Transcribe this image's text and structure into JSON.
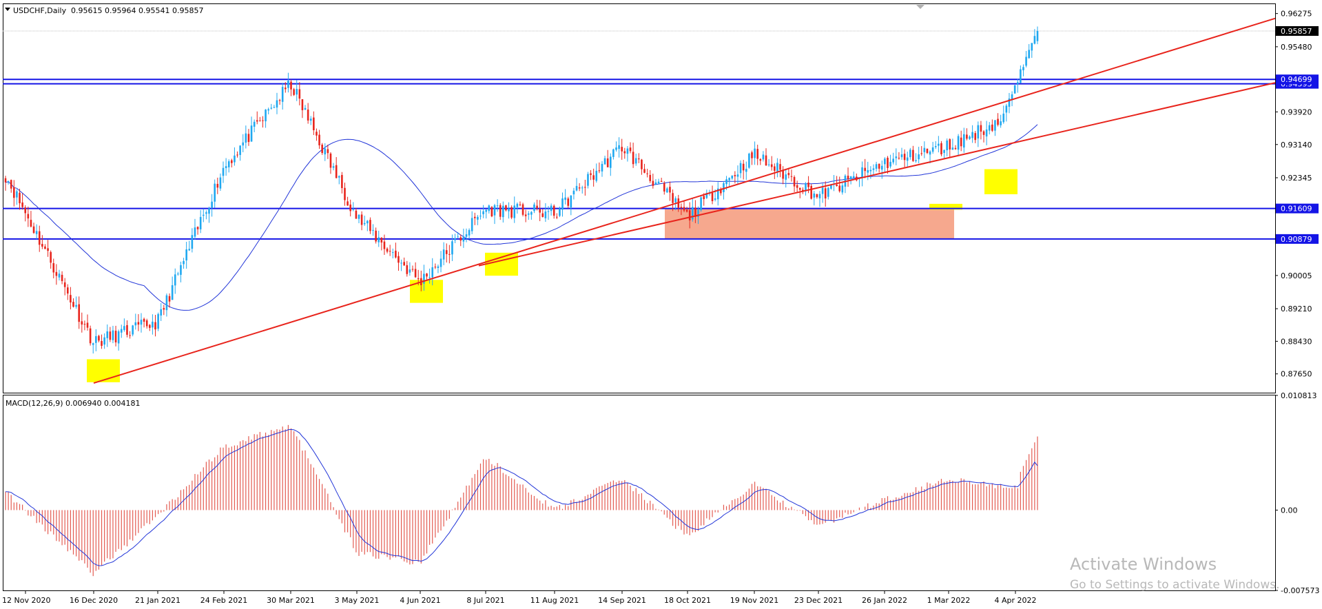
{
  "header": {
    "symbol": "USDCHF,Daily",
    "ohlc": "0.95615 0.95964 0.95541 0.95857",
    "macd_label": "MACD(12,26,9) 0.006940 0.004181"
  },
  "watermark": {
    "line1": "Activate Windows",
    "line2": "Go to Settings to activate Windows."
  },
  "colors": {
    "bull": "#1fa8f0",
    "bear": "#e8241c",
    "sma": "#2034d8",
    "level": "#1414e6",
    "trend": "#e8241c",
    "zone": "#f4997a",
    "highlight": "#ffff00",
    "macd_hist": "#e35a50",
    "macd_signal": "#2034d8"
  },
  "chart_data": {
    "type": "candlestick",
    "symbol": "USDCHF",
    "timeframe": "Daily",
    "last": {
      "open": 0.95615,
      "high": 0.95964,
      "low": 0.95541,
      "close": 0.95857
    },
    "price_axis": {
      "ylim": [
        0.872,
        0.965
      ],
      "ticks": [
        "0.96275",
        "0.95480",
        "0.93920",
        "0.93140",
        "0.92345",
        "0.90005",
        "0.89210",
        "0.88430",
        "0.87650"
      ]
    },
    "time_axis": {
      "ticks": [
        "12 Nov 2020",
        "16 Dec 2020",
        "21 Jan 2021",
        "24 Feb 2021",
        "30 Mar 2021",
        "3 May 2021",
        "4 Jun 2021",
        "8 Jul 2021",
        "11 Aug 2021",
        "14 Sep 2021",
        "18 Oct 2021",
        "19 Nov 2021",
        "23 Dec 2021",
        "26 Jan 2022",
        "1 Mar 2022",
        "4 Apr 2022"
      ]
    },
    "key_points": {
      "dates": [
        "12 Nov 2020",
        "16 Dec 2020",
        "21 Jan 2021",
        "24 Feb 2021",
        "30 Mar 2021",
        "3 May 2021",
        "4 Jun 2021",
        "8 Jul 2021",
        "11 Aug 2021",
        "14 Sep 2021",
        "18 Oct 2021",
        "19 Nov 2021",
        "23 Dec 2021",
        "26 Jan 2022",
        "1 Mar 2022",
        "4 Apr 2022"
      ],
      "close": [
        0.915,
        0.884,
        0.889,
        0.926,
        0.946,
        0.914,
        0.8985,
        0.916,
        0.915,
        0.931,
        0.914,
        0.929,
        0.919,
        0.927,
        0.931,
        0.939
      ],
      "macd": [
        0.0,
        -0.006,
        -0.0005,
        0.006,
        0.008,
        -0.004,
        -0.005,
        0.005,
        0.0,
        0.003,
        -0.0025,
        0.0025,
        -0.0015,
        0.001,
        0.003,
        0.002
      ]
    },
    "current_price": 0.95857,
    "horizontal_levels": [
      {
        "price": 0.94699,
        "label": "0.94699"
      },
      {
        "price": 0.94593,
        "label": "0.94593"
      },
      {
        "price": 0.91609,
        "label": "0.91609"
      },
      {
        "price": 0.90879,
        "label": "0.90879"
      }
    ],
    "trendlines": [
      {
        "from": {
          "date": "16 Dec 2020",
          "price": 0.8743
        },
        "to": {
          "date": "4 Apr 2022",
          "price": 0.9424
        }
      },
      {
        "from": {
          "date": "8 Jul 2021",
          "price": 0.9024
        },
        "to": {
          "date": "4 Apr 2022",
          "price": 0.9319
        }
      }
    ],
    "support_zone": {
      "from": "18 Oct 2021",
      "to": "4 Apr 2022",
      "price_from": 0.90879,
      "price_to": 0.91609
    },
    "highlights": [
      {
        "date": "16 Dec 2020",
        "price_from": 0.8745,
        "price_to": 0.88
      },
      {
        "date": "4 Jun 2021",
        "price_from": 0.8935,
        "price_to": 0.899
      },
      {
        "date": "8 Jul 2021",
        "price_from": 0.9,
        "price_to": 0.9055
      },
      {
        "date": "1 Mar 2022",
        "price_from": 0.9158,
        "price_to": 0.9172
      },
      {
        "date": "4 Apr 2022",
        "price_from": 0.9195,
        "price_to": 0.9255
      }
    ],
    "macd": {
      "params": "12,26,9",
      "value": 0.00694,
      "signal": 0.004181,
      "ylim": [
        -0.00757,
        0.01081
      ],
      "ticks": [
        "0.010813",
        "0.00",
        "-0.007573"
      ]
    }
  }
}
